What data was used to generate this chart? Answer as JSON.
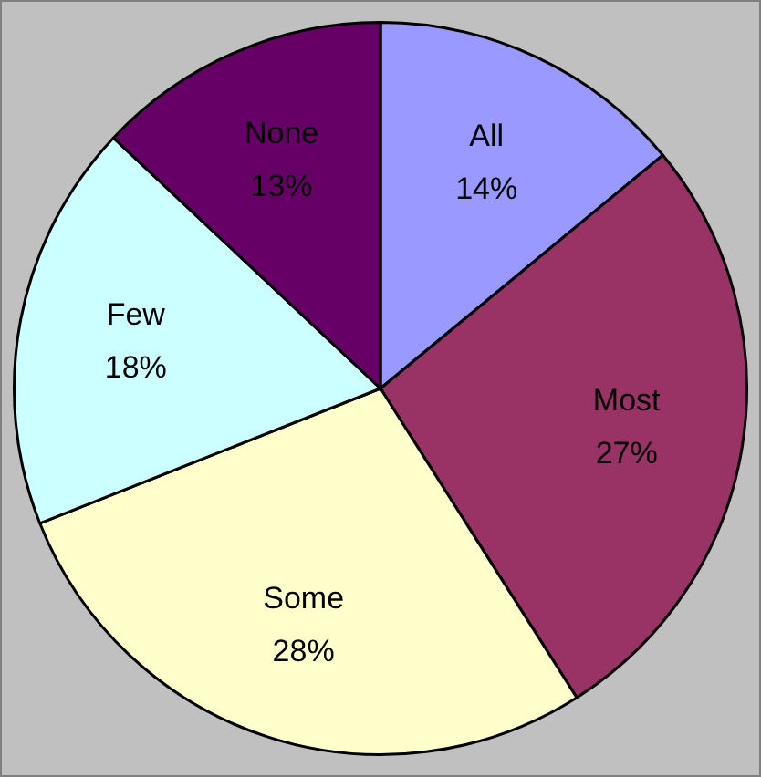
{
  "chart_data": {
    "type": "pie",
    "categories": [
      "All",
      "Most",
      "Some",
      "Few",
      "None"
    ],
    "values": [
      14,
      27,
      28,
      18,
      13
    ],
    "value_labels": [
      "14%",
      "27%",
      "28%",
      "18%",
      "13%"
    ],
    "colors": [
      "#9999ff",
      "#993366",
      "#ffffcc",
      "#ccffff",
      "#660066"
    ],
    "legend": false
  }
}
